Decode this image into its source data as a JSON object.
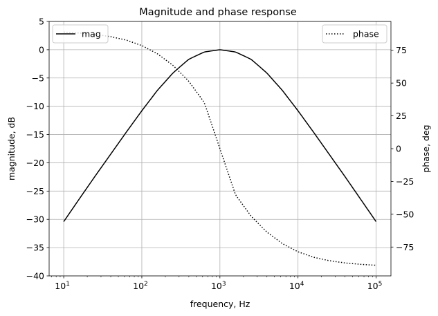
{
  "chart_data": {
    "type": "line",
    "title": "Magnitude and phase response",
    "xlabel": "frequency, Hz",
    "ylabel_left": "magnitude, dB",
    "ylabel_right": "phase, deg",
    "x_scale": "log",
    "xlim": [
      6.5,
      155000
    ],
    "ylim_left": [
      -40,
      5
    ],
    "ylim_right": [
      -97,
      97
    ],
    "grid": true,
    "x_ticks": [
      10,
      100,
      1000,
      10000,
      100000
    ],
    "x_tick_labels": [
      {
        "base": "10",
        "exp": "1"
      },
      {
        "base": "10",
        "exp": "2"
      },
      {
        "base": "10",
        "exp": "3"
      },
      {
        "base": "10",
        "exp": "4"
      },
      {
        "base": "10",
        "exp": "5"
      }
    ],
    "y_left_ticks": [
      5,
      0,
      -5,
      -10,
      -15,
      -20,
      -25,
      -30,
      -35,
      -40
    ],
    "y_left_tick_labels": [
      "5",
      "0",
      "−5",
      "−10",
      "−15",
      "−20",
      "−25",
      "−30",
      "−35",
      "−40"
    ],
    "y_right_ticks": [
      75,
      50,
      25,
      0,
      -25,
      -50,
      -75
    ],
    "y_right_tick_labels": [
      "75",
      "50",
      "25",
      "0",
      "−25",
      "−50",
      "−75"
    ],
    "series": [
      {
        "name": "mag",
        "axis": "left",
        "line_style": "solid",
        "color": "#000000",
        "x": [
          10,
          15.8,
          25.1,
          39.8,
          63.1,
          100,
          158,
          251,
          398,
          631,
          1000,
          1585,
          2512,
          3981,
          6310,
          10000,
          15849,
          25119,
          39811,
          63096,
          100000
        ],
        "y": [
          -30.4,
          -26.4,
          -22.4,
          -18.5,
          -14.6,
          -10.8,
          -7.2,
          -4.1,
          -1.7,
          -0.4,
          0.0,
          -0.4,
          -1.7,
          -4.1,
          -7.2,
          -10.8,
          -14.6,
          -18.5,
          -22.4,
          -26.4,
          -30.4
        ]
      },
      {
        "name": "phase",
        "axis": "right",
        "line_style": "dotted",
        "color": "#000000",
        "x": [
          10,
          15.8,
          25.1,
          39.8,
          63.1,
          100,
          158,
          251,
          398,
          631,
          1000,
          1585,
          2512,
          3981,
          6310,
          10000,
          15849,
          25119,
          39811,
          63096,
          100000
        ],
        "y": [
          88.9,
          88.2,
          87.1,
          85.4,
          82.8,
          78.6,
          72.4,
          63.5,
          51.5,
          35.2,
          0.0,
          -35.2,
          -51.5,
          -63.5,
          -72.4,
          -78.6,
          -82.8,
          -85.4,
          -87.1,
          -88.2,
          -88.9
        ]
      }
    ],
    "legends": [
      {
        "placement": "upper-left",
        "entries": [
          "mag"
        ]
      },
      {
        "placement": "upper-right",
        "entries": [
          "phase"
        ]
      }
    ]
  }
}
